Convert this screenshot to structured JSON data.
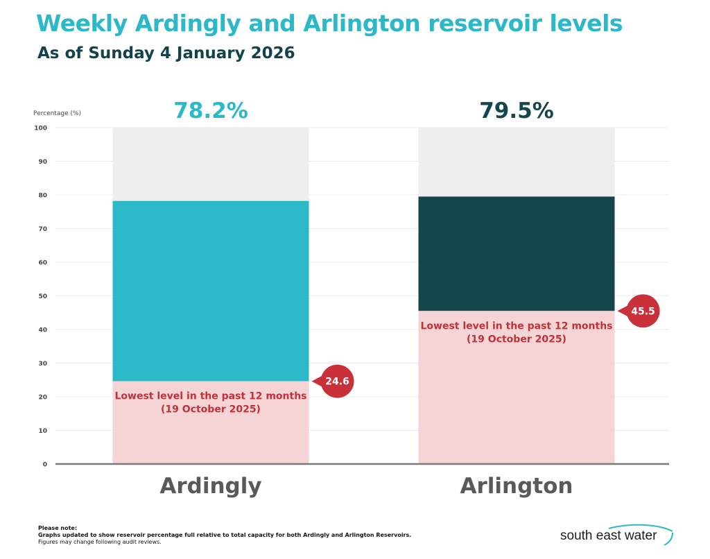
{
  "title": "Weekly Ardingly and Arlington reservoir levels",
  "subtitle": "As of Sunday 4 January 2026",
  "chart_data": {
    "type": "bar",
    "ylabel": "Percentage (%)",
    "ylim": [
      0,
      100
    ],
    "yticks": [
      0,
      10,
      20,
      30,
      40,
      50,
      60,
      70,
      80,
      90,
      100
    ],
    "grid": true,
    "categories": [
      "Ardingly",
      "Arlington"
    ],
    "series": [
      {
        "values": [
          78.2,
          79.5
        ]
      }
    ],
    "value_labels": [
      "78.2%",
      "79.5%"
    ],
    "lowest": {
      "values": [
        24.6,
        45.5
      ],
      "labels": [
        "24.6",
        "45.5"
      ],
      "text_line1": "Lowest level in the past 12 months",
      "text_line2": "(19 October 2025)"
    },
    "colors": {
      "ardingly": "#2bb8c8",
      "arlington": "#14464b",
      "capacity": "#eeeeee",
      "lowest_fill": "#f4d4d4",
      "lowest_marker": "#c8303a",
      "lowest_text": "#c0313a",
      "category_text": "#595959"
    }
  },
  "note": {
    "heading": "Please note:",
    "line1": "Graphs updated to show reservoir percentage full relative to total capacity for both Ardingly and Arlington Reservoirs.",
    "line2": "Figures may change following audit reviews."
  },
  "logo": {
    "text": "south east water",
    "icon": "wave-swoosh-icon"
  }
}
